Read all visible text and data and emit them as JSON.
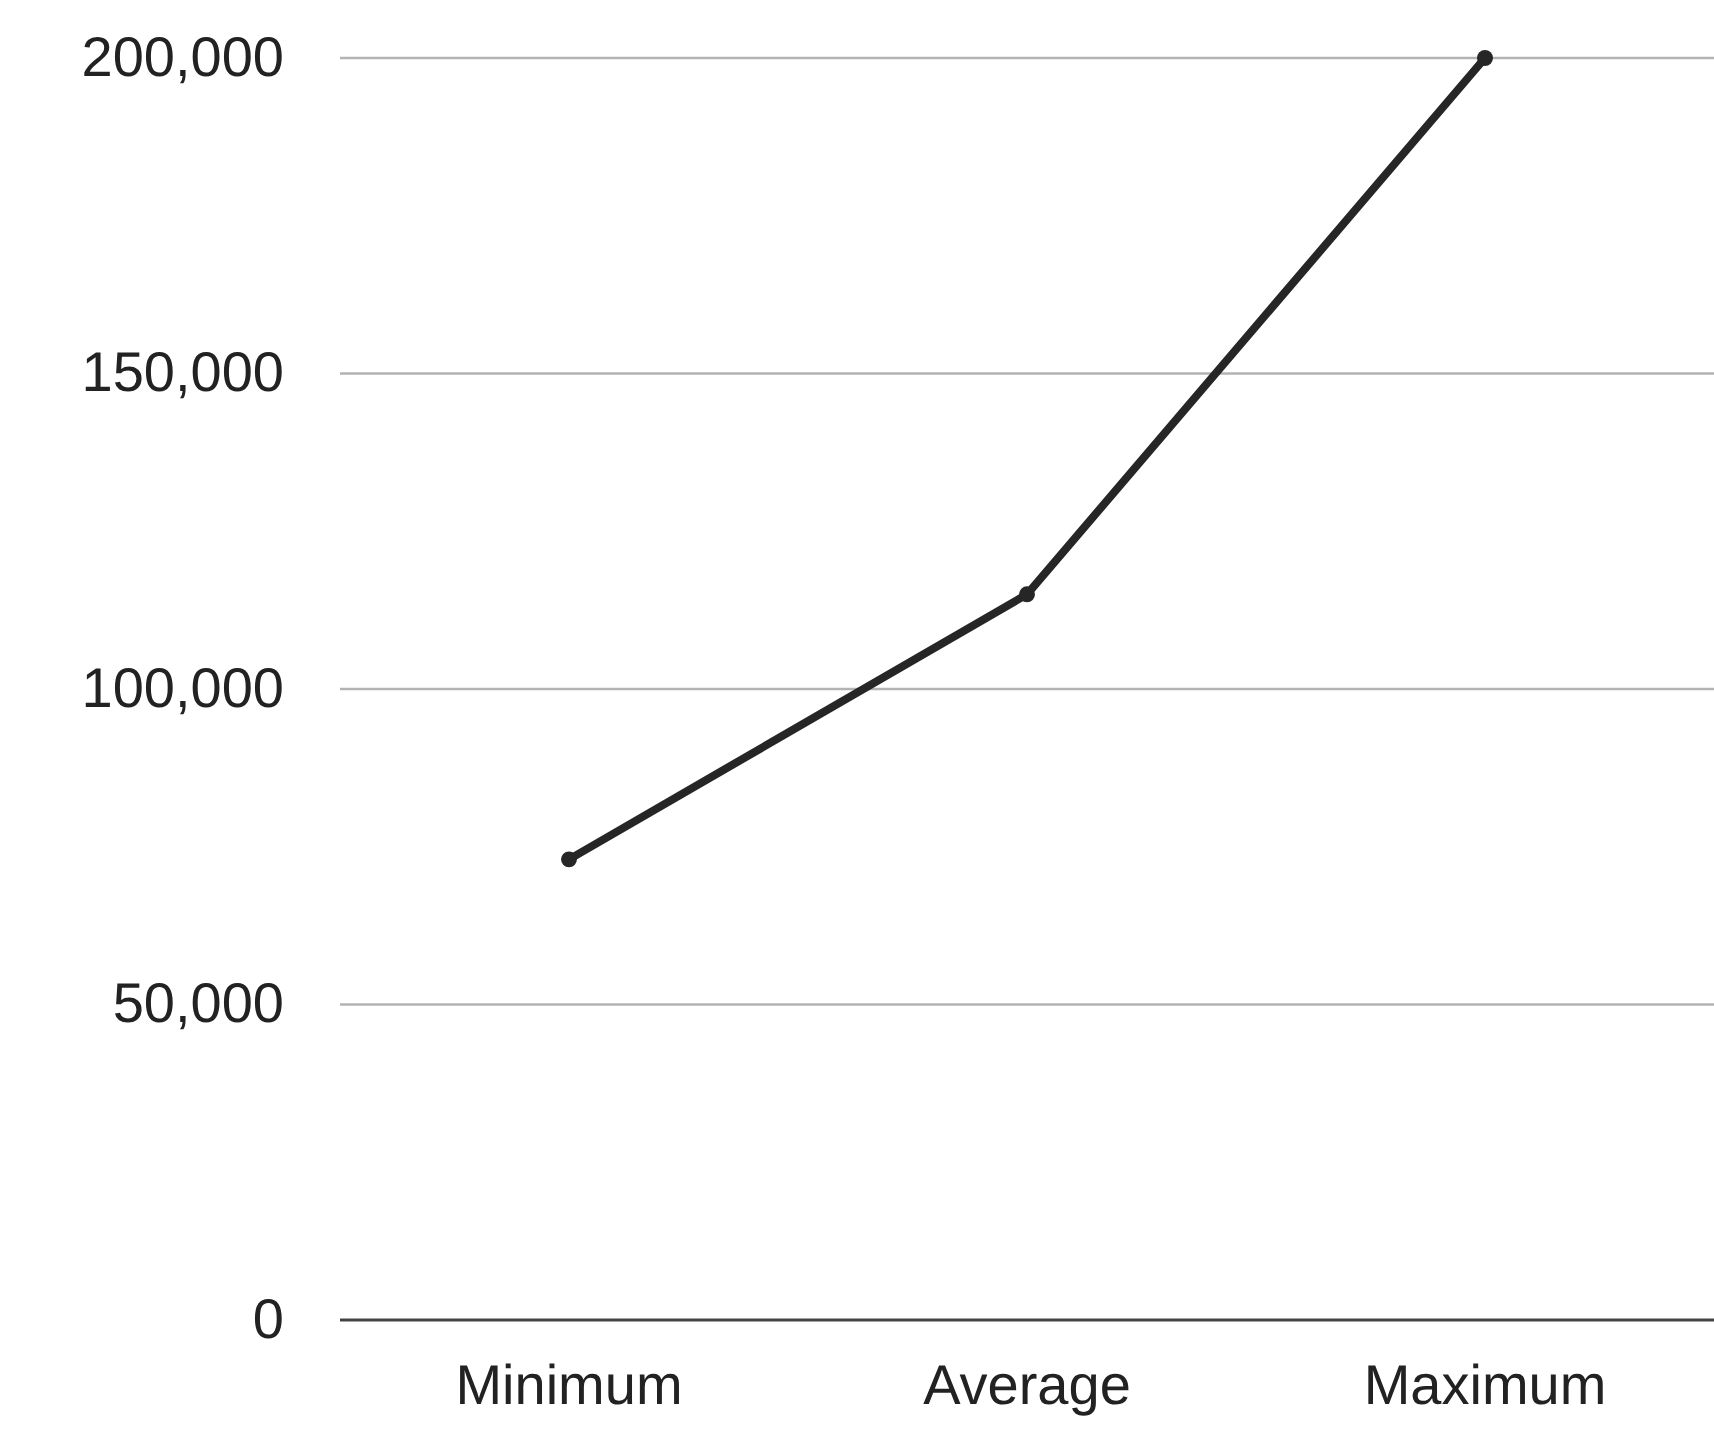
{
  "chart_data": {
    "type": "line",
    "categories": [
      "Minimum",
      "Average",
      "Maximum"
    ],
    "series": [
      {
        "color": "#262626",
        "values": [
          73000,
          115000,
          200000
        ]
      }
    ],
    "ylim": [
      0,
      200000
    ],
    "yticks": [
      0,
      {
        "value": 50000,
        "label": "50,000"
      },
      {
        "value": 100000,
        "label": "100,000"
      },
      {
        "value": 150000,
        "label": "150,000"
      },
      {
        "value": 200000,
        "label": "200,000"
      }
    ],
    "grid": "y",
    "marker": "circle",
    "line_style": "solid"
  }
}
